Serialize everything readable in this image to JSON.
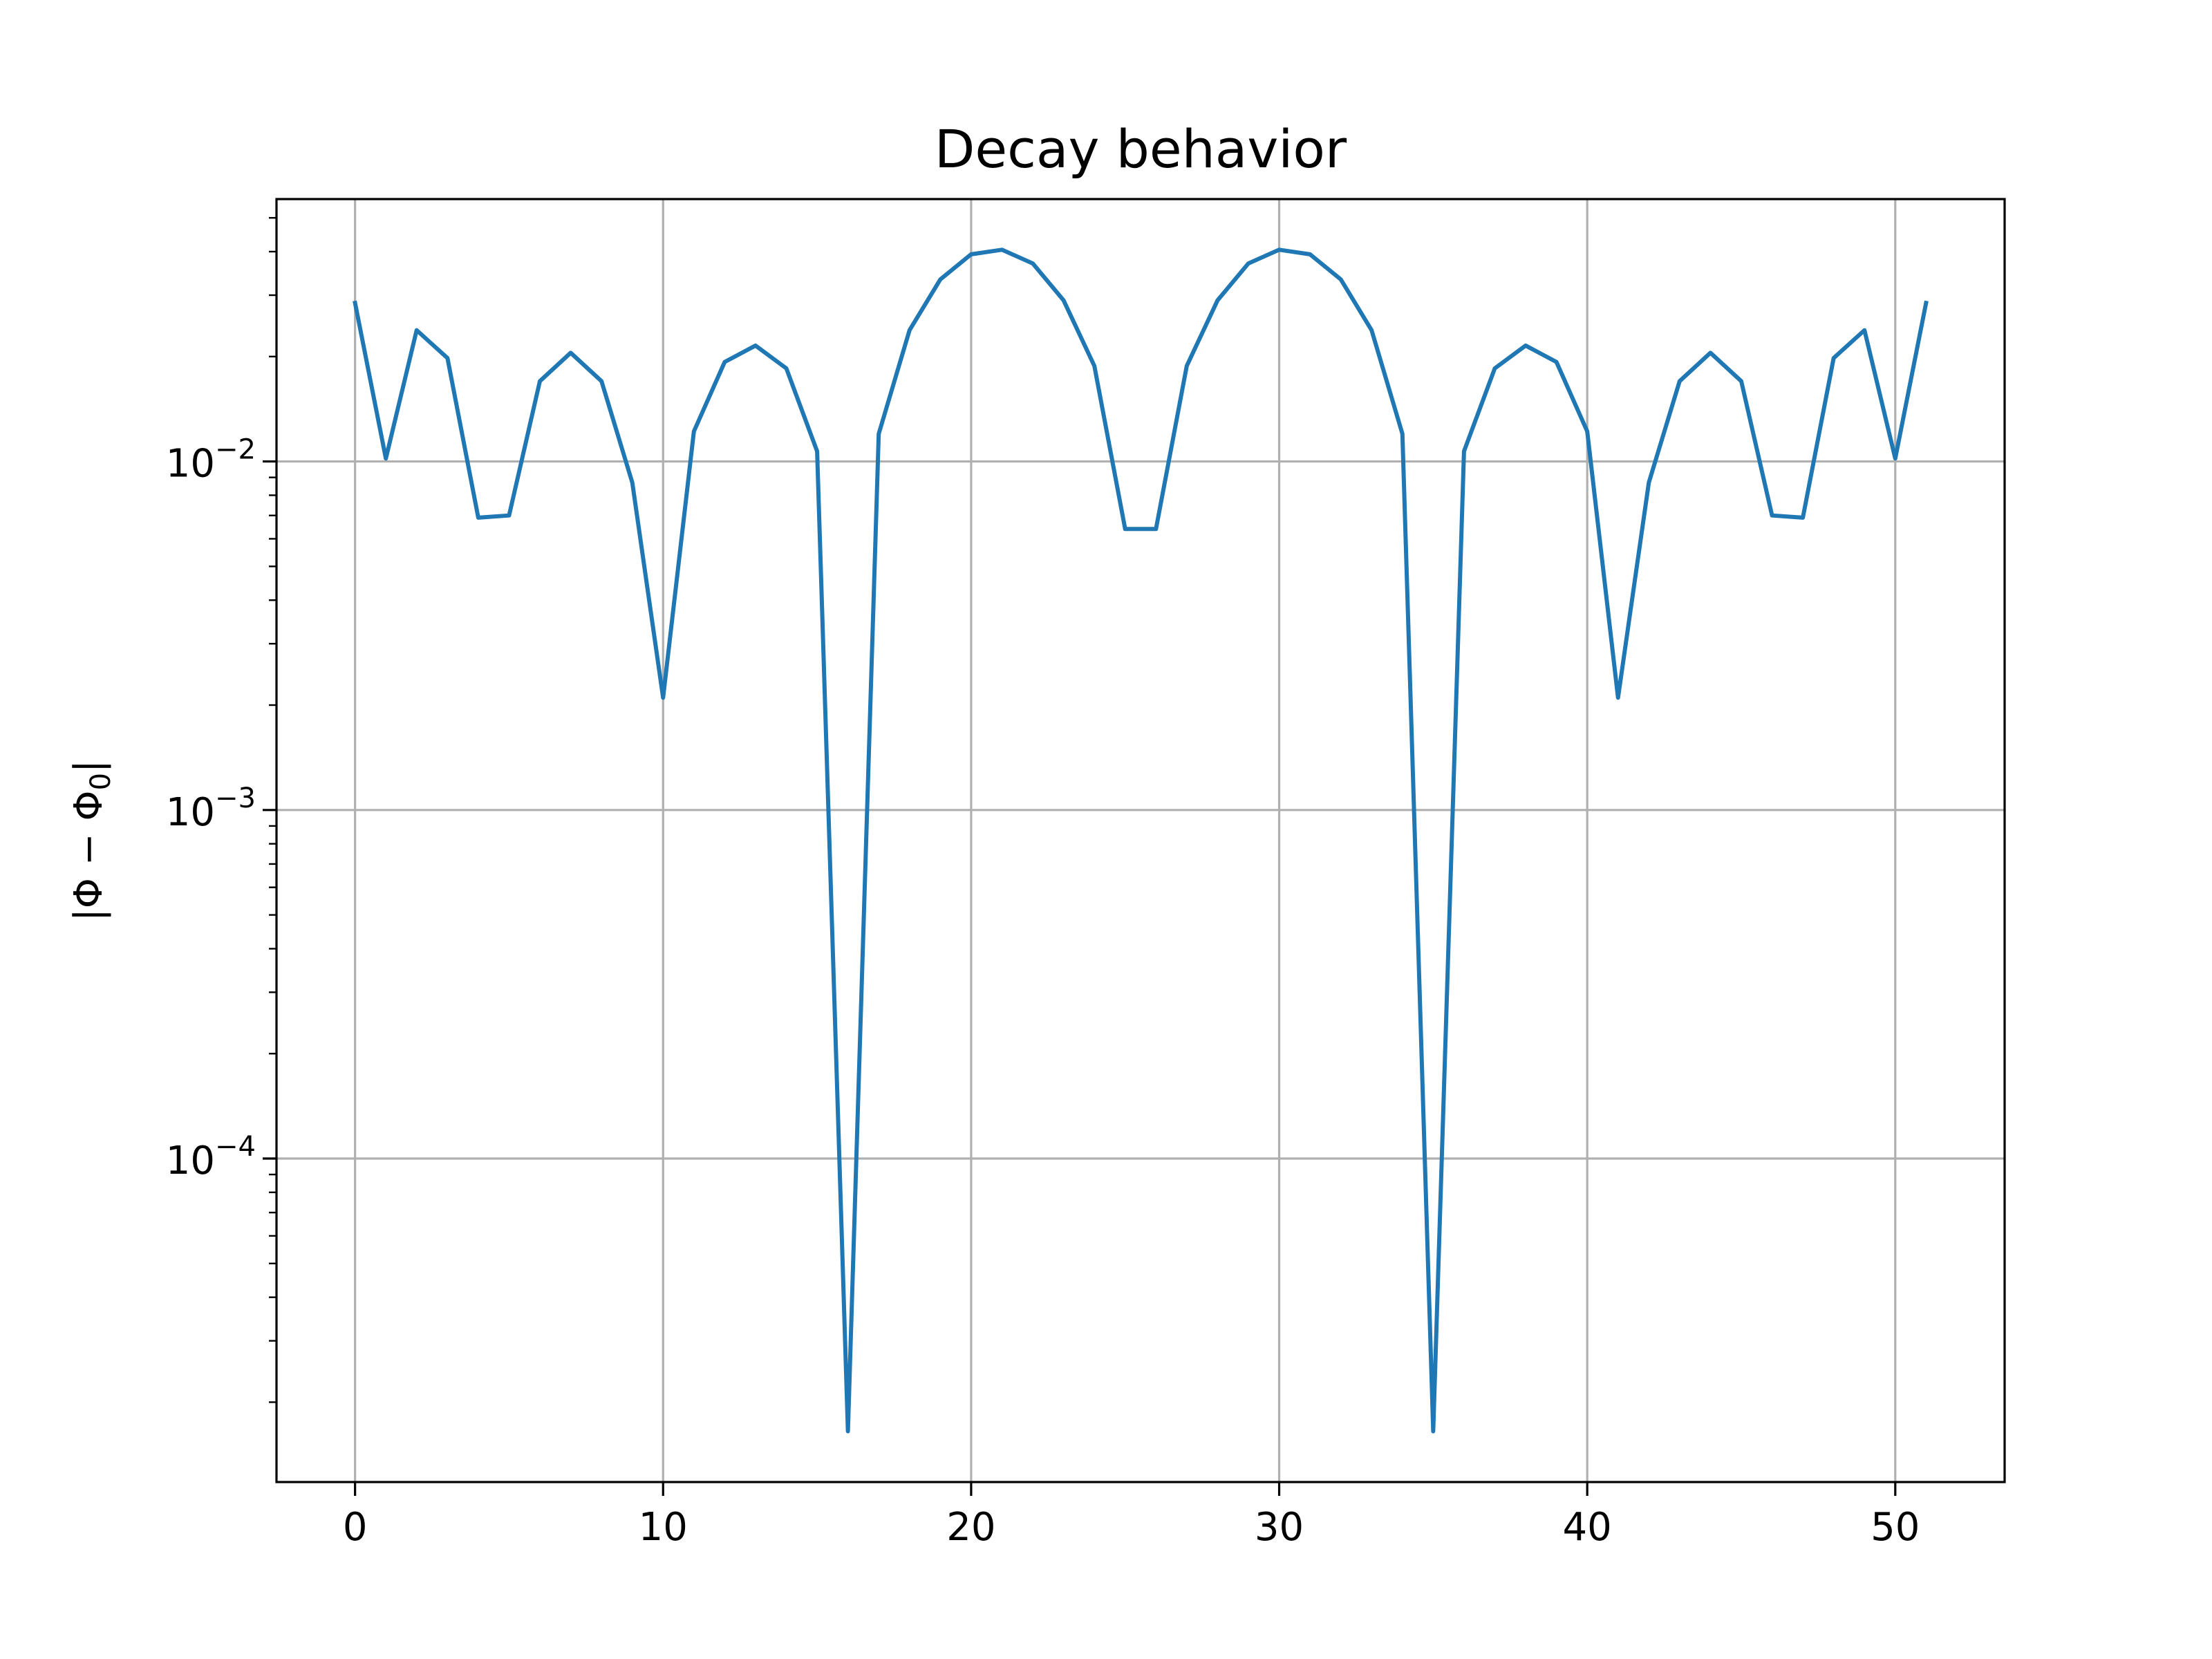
{
  "chart_data": {
    "type": "line",
    "title": "Decay behavior",
    "xlabel": "",
    "ylabel": "|Φ − Φ₀|",
    "ylabel_parts": {
      "lead": "|Φ − Φ",
      "sub": "0",
      "tail": "|"
    },
    "yscale": "log",
    "grid": true,
    "xlim": [
      -2.55,
      53.55
    ],
    "ylim": [
      1.18e-05,
      0.0566
    ],
    "x_ticks": [
      0,
      10,
      20,
      30,
      40,
      50
    ],
    "y_ticks": [
      {
        "value": 0.0001,
        "base": "10",
        "exp": "−4"
      },
      {
        "value": 0.001,
        "base": "10",
        "exp": "−3"
      },
      {
        "value": 0.01,
        "base": "10",
        "exp": "−2"
      }
    ],
    "series": [
      {
        "color": "#1f77b4",
        "x": [
          0,
          1,
          2,
          3,
          4,
          5,
          6,
          7,
          8,
          9,
          10,
          11,
          12,
          13,
          14,
          15,
          16,
          17,
          18,
          19,
          20,
          21,
          22,
          23,
          24,
          25,
          26,
          27,
          28,
          29,
          30,
          31,
          32,
          33,
          34,
          35,
          36,
          37,
          38,
          39,
          40,
          41,
          42,
          43,
          44,
          45,
          46,
          47,
          48,
          49,
          50,
          51
        ],
        "values": [
          0.0285,
          0.0102,
          0.0238,
          0.0198,
          0.0069,
          0.007,
          0.017,
          0.0205,
          0.017,
          0.0087,
          0.0021,
          0.0122,
          0.0193,
          0.0215,
          0.0185,
          0.0107,
          1.65e-05,
          0.012,
          0.0238,
          0.0333,
          0.0393,
          0.0405,
          0.037,
          0.029,
          0.0188,
          0.0064,
          0.0064,
          0.0188,
          0.029,
          0.037,
          0.0405,
          0.0393,
          0.0333,
          0.0238,
          0.012,
          1.65e-05,
          0.0107,
          0.0185,
          0.0215,
          0.0193,
          0.0122,
          0.0021,
          0.0087,
          0.017,
          0.0205,
          0.017,
          0.007,
          0.0069,
          0.0198,
          0.0238,
          0.0102,
          0.0285
        ]
      }
    ]
  }
}
